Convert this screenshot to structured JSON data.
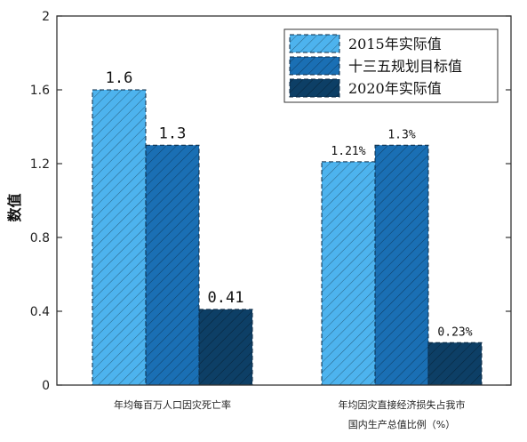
{
  "chart_data": {
    "type": "bar",
    "ylabel": "数值",
    "ylim": [
      0,
      2
    ],
    "yticks": [
      "0",
      "0.4",
      "0.8",
      "1.2",
      "1.6",
      "2"
    ],
    "legend_position": "top-right",
    "categories": [
      [
        "年均每百万人口因灾死亡率"
      ],
      [
        "年均因灾直接经济损失占我市",
        "国内生产总值比例（%）"
      ]
    ],
    "series": [
      {
        "name": "2015年实际值",
        "color": "#4db3ee",
        "values": [
          1.6,
          1.21
        ],
        "labels": [
          "1.6",
          "1.21%"
        ]
      },
      {
        "name": "十三五规划目标值",
        "color": "#1a6fb4",
        "values": [
          1.3,
          1.3
        ],
        "labels": [
          "1.3",
          "1.3%"
        ]
      },
      {
        "name": "2020年实际值",
        "color": "#0d3f66",
        "values": [
          0.41,
          0.23
        ],
        "labels": [
          "0.41",
          "0.23%"
        ]
      }
    ]
  }
}
